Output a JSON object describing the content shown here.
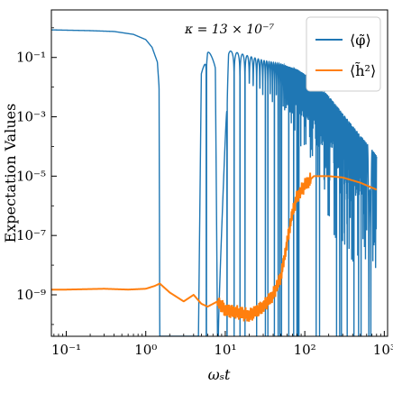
{
  "chart_data": {
    "type": "line",
    "xlabel": "ωₛt",
    "ylabel": "Expectation Values",
    "xscale": "log",
    "yscale": "log",
    "xlim": [
      0.065,
      1100
    ],
    "ylim": [
      4e-11,
      4
    ],
    "grid": false,
    "legend_position": "top-right",
    "annotation": "κ = 13 × 10⁻⁷",
    "x_ticks": [
      {
        "value": 0.1,
        "label": "10⁻¹"
      },
      {
        "value": 1,
        "label": "10⁰"
      },
      {
        "value": 10,
        "label": "10¹"
      },
      {
        "value": 100,
        "label": "10²"
      },
      {
        "value": 1000,
        "label": "10³"
      }
    ],
    "y_ticks": [
      {
        "value": 1e-09,
        "label": "10⁻⁹"
      },
      {
        "value": 1e-07,
        "label": "10⁻⁷"
      },
      {
        "value": 1e-05,
        "label": "10⁻⁵"
      },
      {
        "value": 0.001,
        "label": "10⁻³"
      },
      {
        "value": 0.1,
        "label": "10⁻¹"
      }
    ],
    "series": [
      {
        "name": "⟨φ̃⟩",
        "color": "#1f77b4",
        "x": [
          0.065,
          0.1,
          0.2,
          0.4,
          0.7,
          1.0,
          1.2,
          1.4,
          1.47,
          1.5,
          4.6,
          5.0,
          6.0,
          7.5,
          8.0,
          11.0,
          15.0,
          20.0,
          30.0,
          50.0,
          80.0,
          120.0,
          200.0,
          400.0,
          800.0
        ],
        "envelope": [
          0.85,
          0.83,
          0.8,
          0.75,
          0.6,
          0.4,
          0.22,
          0.07,
          0.01,
          4e-11,
          4e-11,
          0.03,
          0.25,
          0.05,
          4e-11,
          0.17,
          0.14,
          0.11,
          0.08,
          0.06,
          0.04,
          0.02,
          0.005,
          0.0005,
          5e-05
        ]
      },
      {
        "name": "⟨h̃²⟩",
        "color": "#ff7f0e",
        "x": [
          0.065,
          0.1,
          0.3,
          0.6,
          1.0,
          1.3,
          1.5,
          2.0,
          3.0,
          4.0,
          5.0,
          6.0,
          8.0,
          10.0,
          15.0,
          20.0,
          30.0,
          40.0,
          50.0,
          60.0,
          70.0,
          80.0,
          100.0,
          130.0,
          200.0,
          300.0,
          500.0,
          800.0
        ],
        "y": [
          1.5e-09,
          1.5e-09,
          1.6e-09,
          1.5e-09,
          1.6e-09,
          2e-09,
          2.4e-09,
          1.2e-09,
          6e-10,
          1e-09,
          5e-10,
          4e-10,
          6e-10,
          3e-10,
          2.5e-10,
          2e-10,
          4e-10,
          1e-09,
          4e-09,
          6e-08,
          6e-07,
          2e-06,
          5e-06,
          1e-05,
          1e-05,
          9e-06,
          6e-06,
          3.5e-06
        ]
      }
    ]
  }
}
